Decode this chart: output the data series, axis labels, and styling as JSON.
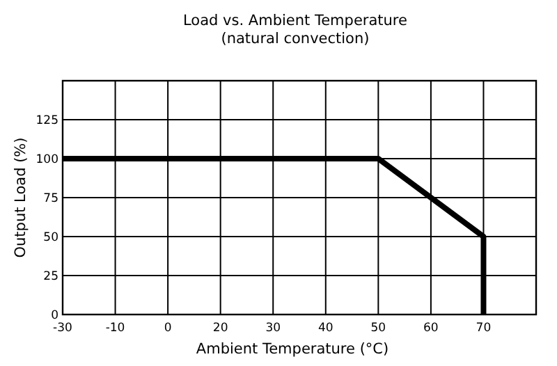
{
  "chart_data": {
    "type": "line",
    "title": "Load vs. Ambient Temperature",
    "subtitle": "(natural convection)",
    "xlabel": "Ambient Temperature (°C)",
    "ylabel": "Output Load (%)",
    "categories": [
      "-30",
      "-10",
      "0",
      "20",
      "30",
      "40",
      "50",
      "60",
      "70",
      null
    ],
    "series": [
      {
        "color": "#000000",
        "x": [
          "-30",
          "-10",
          "0",
          "20",
          "30",
          "40",
          "50",
          "60",
          "70",
          "70"
        ],
        "values": [
          100,
          100,
          100,
          100,
          100,
          100,
          100,
          75,
          50,
          0
        ]
      }
    ],
    "ylim": [
      0,
      150
    ],
    "yticks": [
      0,
      25,
      50,
      75,
      100,
      125
    ],
    "grid": true,
    "marker": "none",
    "line_style": "solid"
  }
}
